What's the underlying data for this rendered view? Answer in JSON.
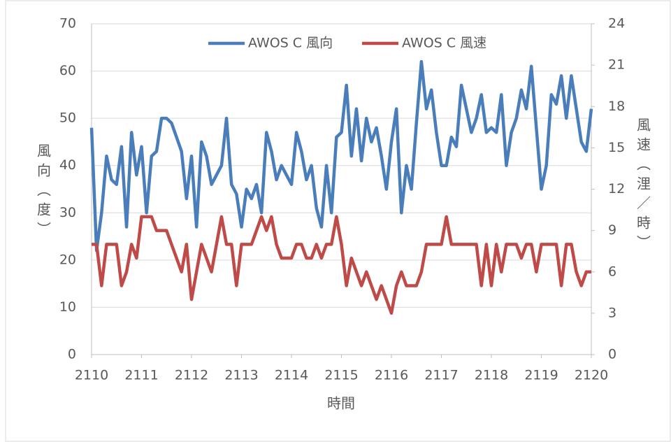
{
  "chart_data": {
    "type": "line",
    "x_label": "時間",
    "y_label": "風向（度）",
    "y2_label": "風速（浬／時）",
    "x": [
      2110,
      2110.1,
      2110.2,
      2110.3,
      2110.4,
      2110.5,
      2110.6,
      2110.7,
      2110.8,
      2110.9,
      2111,
      2111.1,
      2111.2,
      2111.3,
      2111.4,
      2111.5,
      2111.6,
      2111.7,
      2111.8,
      2111.9,
      2112,
      2112.1,
      2112.2,
      2112.3,
      2112.4,
      2112.5,
      2112.6,
      2112.7,
      2112.8,
      2112.9,
      2113,
      2113.1,
      2113.2,
      2113.3,
      2113.4,
      2113.5,
      2113.6,
      2113.7,
      2113.8,
      2113.9,
      2114,
      2114.1,
      2114.2,
      2114.3,
      2114.4,
      2114.5,
      2114.6,
      2114.7,
      2114.8,
      2114.9,
      2115,
      2115.1,
      2115.2,
      2115.3,
      2115.4,
      2115.5,
      2115.6,
      2115.7,
      2115.8,
      2115.9,
      2116,
      2116.1,
      2116.2,
      2116.3,
      2116.4,
      2116.5,
      2116.6,
      2116.7,
      2116.8,
      2116.9,
      2117,
      2117.1,
      2117.2,
      2117.3,
      2117.4,
      2117.5,
      2117.6,
      2117.7,
      2117.8,
      2117.9,
      2118,
      2118.1,
      2118.2,
      2118.3,
      2118.4,
      2118.5,
      2118.6,
      2118.7,
      2118.8,
      2118.9,
      2119,
      2119.1,
      2119.2,
      2119.3,
      2119.4,
      2119.5,
      2119.6,
      2119.7,
      2119.8,
      2119.9,
      2120
    ],
    "series": [
      {
        "name": "AWOS C 風向",
        "color": "#4a7ebb",
        "axis": "y",
        "values": [
          48,
          22,
          30,
          42,
          37,
          36,
          44,
          27,
          47,
          38,
          44,
          30,
          42,
          43,
          50,
          50,
          49,
          46,
          43,
          33,
          42,
          27,
          45,
          42,
          36,
          38,
          40,
          50,
          36,
          34,
          27,
          35,
          33,
          36,
          30,
          47,
          43,
          37,
          40,
          38,
          36,
          47,
          43,
          37,
          40,
          31,
          27,
          40,
          30,
          46,
          47,
          57,
          42,
          52,
          41,
          50,
          45,
          48,
          42,
          35,
          45,
          52,
          30,
          40,
          35,
          49,
          62,
          52,
          56,
          47,
          40,
          40,
          46,
          44,
          57,
          52,
          47,
          50,
          55,
          47,
          48,
          47,
          55,
          40,
          47,
          50,
          56,
          52,
          61,
          48,
          35,
          40,
          55,
          53,
          59,
          50,
          59,
          52,
          45,
          43,
          52
        ]
      },
      {
        "name": "AWOS C 風速",
        "color": "#be4b48",
        "axis": "y2",
        "values": [
          8,
          8,
          5,
          8,
          8,
          8,
          5,
          6,
          8,
          7,
          10,
          10,
          10,
          9,
          9,
          9,
          8,
          7,
          6,
          8,
          4,
          6,
          8,
          7,
          6,
          8,
          10,
          8,
          8,
          5,
          8,
          8,
          8,
          9,
          10,
          9,
          10,
          8,
          7,
          7,
          7,
          8,
          8,
          7,
          7,
          8,
          7,
          8,
          8,
          10,
          8,
          5,
          7,
          6,
          5,
          6,
          5,
          4,
          5,
          4,
          3,
          5,
          6,
          5,
          5,
          5,
          6,
          8,
          8,
          8,
          8,
          10,
          8,
          8,
          8,
          8,
          8,
          8,
          5,
          8,
          5,
          8,
          6,
          8,
          8,
          8,
          7,
          8,
          8,
          6,
          8,
          8,
          8,
          8,
          5,
          8,
          8,
          6,
          5,
          6,
          6
        ]
      }
    ],
    "xlim": [
      2110,
      2120
    ],
    "xticks": [
      2110,
      2111,
      2112,
      2113,
      2114,
      2115,
      2116,
      2117,
      2118,
      2119,
      2120
    ],
    "ylim": [
      0,
      70
    ],
    "yticks": [
      0,
      10,
      20,
      30,
      40,
      50,
      60,
      70
    ],
    "y2lim": [
      0,
      24
    ],
    "y2ticks": [
      0,
      3,
      6,
      9,
      12,
      15,
      18,
      21,
      24
    ],
    "grid": true,
    "legend": "top"
  }
}
